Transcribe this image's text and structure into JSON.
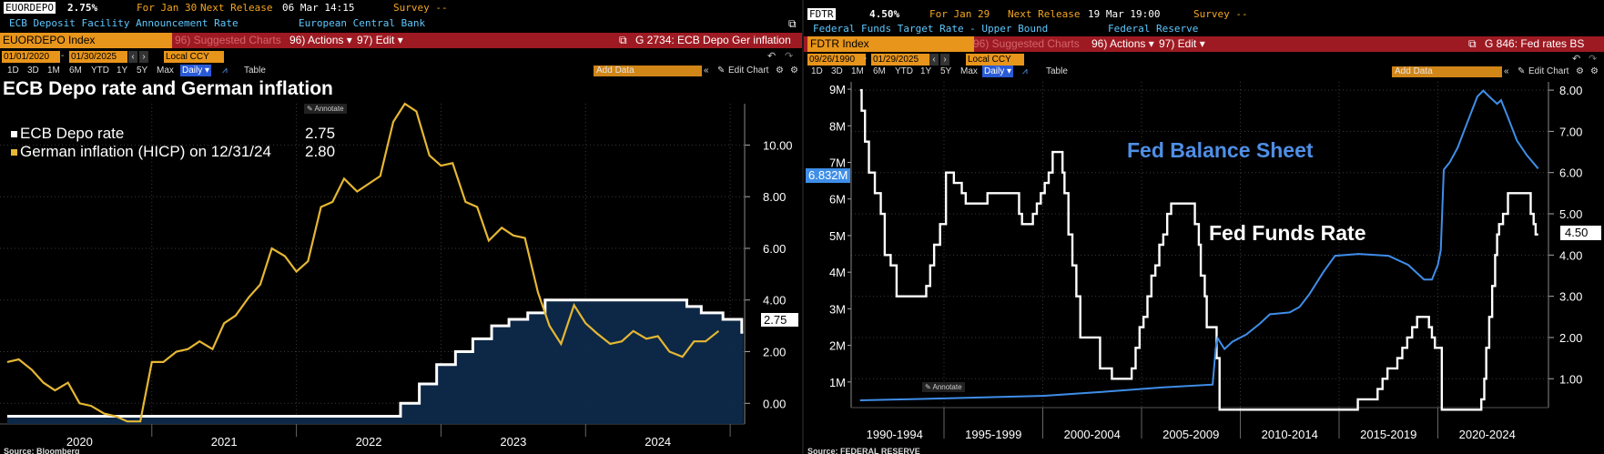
{
  "left": {
    "ticker": "EUORDEPO",
    "value": "2.75%",
    "for_date": "For Jan 30",
    "next_release_label": "Next Release",
    "next_release": "06 Mar 14:15",
    "survey": "Survey --",
    "description": "ECB Deposit Facility Announcement Rate",
    "source_org": "European Central Bank",
    "index_label": "EUORDEPO Index",
    "suggested_charts": "96) Suggested Charts",
    "actions": "96) Actions ▾",
    "edit": "97) Edit ▾",
    "chart_ref": "G 2734: ECB Depo Ger inflation",
    "date_from": "01/01/2020",
    "date_to": "01/30/2025",
    "currency": "Local CCY",
    "periods": [
      "1D",
      "3D",
      "1M",
      "6M",
      "YTD",
      "1Y",
      "5Y",
      "Max"
    ],
    "frequency": "Daily ▾",
    "table_label": "Table",
    "add_data": "Add Data",
    "edit_chart": "Edit Chart",
    "title": "ECB Depo rate and German inflation",
    "annotate": "Annotate",
    "source": "Source: Bloomberg",
    "last_value_tag": "2.75",
    "legend": [
      {
        "name": "ECB Depo rate",
        "value": "2.75",
        "color": "#ffffff"
      },
      {
        "name": "German inflation (HICP) on 12/31/24",
        "value": "2.80",
        "color": "#e5b733"
      }
    ]
  },
  "right": {
    "ticker": "FDTR",
    "value": "4.50%",
    "for_date": "For Jan 29",
    "next_release_label": "Next Release",
    "next_release": "19 Mar 19:00",
    "survey": "Survey --",
    "description": "Federal Funds Target Rate - Upper Bound",
    "source_org": "Federal Reserve",
    "index_label": "FDTR Index",
    "suggested_charts": "96) Suggested Charts",
    "actions": "96) Actions ▾",
    "edit": "97) Edit ▾",
    "chart_ref": "G 846: Fed rates BS",
    "date_from": "09/26/1990",
    "date_to": "01/29/2025",
    "currency": "Local CCY",
    "periods": [
      "1D",
      "3D",
      "1M",
      "6M",
      "YTD",
      "1Y",
      "5Y",
      "Max"
    ],
    "frequency": "Daily ▾",
    "table_label": "Table",
    "add_data": "Add Data",
    "edit_chart": "Edit Chart",
    "annotate": "Annotate",
    "label_balance_sheet": "Fed Balance Sheet",
    "label_funds_rate": "Fed Funds Rate",
    "tag_left": "6.832M",
    "tag_right": "4.50",
    "source": "Source: FEDERAL RESERVE"
  },
  "colors": {
    "accent_orange": "#e8951b",
    "bar_red": "#9e1a22",
    "depo_fill": "#0e2a4a",
    "inflation": "#e5b733",
    "balance": "#3f8ee8"
  },
  "chart_data": [
    {
      "type": "line",
      "title": "ECB Depo rate and German inflation",
      "x_ticks": [
        "2020",
        "2021",
        "2022",
        "2023",
        "2024"
      ],
      "y_ticks": [
        "0.00",
        "2.00",
        "4.00",
        "6.00",
        "8.00",
        "10.00"
      ],
      "ylim": [
        -0.8,
        11.6
      ],
      "grid": true,
      "legend_position": "top-left",
      "series": [
        {
          "name": "ECB Depo rate",
          "style": "step-area",
          "x": [
            2020.0,
            2022.55,
            2022.72,
            2022.85,
            2022.97,
            2023.1,
            2023.22,
            2023.35,
            2023.47,
            2023.6,
            2023.72,
            2024.43,
            2024.7,
            2024.8,
            2024.95,
            2025.08
          ],
          "y": [
            -0.5,
            -0.5,
            0.0,
            0.75,
            1.5,
            2.0,
            2.5,
            3.0,
            3.25,
            3.5,
            4.0,
            4.0,
            3.75,
            3.5,
            3.25,
            2.75
          ]
        },
        {
          "name": "German inflation (HICP) on 12/31/24",
          "style": "line",
          "x": [
            2020.0,
            2020.08,
            2020.17,
            2020.25,
            2020.33,
            2020.42,
            2020.5,
            2020.58,
            2020.67,
            2020.75,
            2020.83,
            2020.92,
            2021.0,
            2021.08,
            2021.17,
            2021.25,
            2021.33,
            2021.42,
            2021.5,
            2021.58,
            2021.67,
            2021.75,
            2021.83,
            2021.92,
            2022.0,
            2022.08,
            2022.17,
            2022.25,
            2022.33,
            2022.42,
            2022.5,
            2022.58,
            2022.67,
            2022.75,
            2022.83,
            2022.92,
            2023.0,
            2023.08,
            2023.17,
            2023.25,
            2023.33,
            2023.42,
            2023.5,
            2023.58,
            2023.67,
            2023.75,
            2023.83,
            2023.92,
            2024.0,
            2024.08,
            2024.17,
            2024.25,
            2024.33,
            2024.42,
            2024.5,
            2024.58,
            2024.67,
            2024.75,
            2024.83,
            2024.92
          ],
          "y": [
            1.6,
            1.7,
            1.3,
            0.8,
            0.5,
            0.8,
            0.0,
            -0.1,
            -0.4,
            -0.5,
            -0.7,
            -0.7,
            1.6,
            1.6,
            2.0,
            2.1,
            2.4,
            2.1,
            3.1,
            3.4,
            4.1,
            4.6,
            6.0,
            5.7,
            5.1,
            5.5,
            7.6,
            7.8,
            8.7,
            8.2,
            8.5,
            8.8,
            10.9,
            11.6,
            11.3,
            9.6,
            9.2,
            9.3,
            7.8,
            7.6,
            6.3,
            6.8,
            6.5,
            6.4,
            4.3,
            3.0,
            2.3,
            3.8,
            3.1,
            2.7,
            2.3,
            2.4,
            2.8,
            2.5,
            2.6,
            2.0,
            1.8,
            2.4,
            2.4,
            2.8
          ]
        }
      ]
    },
    {
      "type": "line",
      "x_ticks": [
        "1990-1994",
        "1995-1999",
        "2000-2004",
        "2005-2009",
        "2010-2014",
        "2015-2019",
        "2020-2024"
      ],
      "y_left_ticks": [
        "1M",
        "2M",
        "3M",
        "4M",
        "5M",
        "6M",
        "7M",
        "8M",
        "9M"
      ],
      "y_right_ticks": [
        "1.00",
        "2.00",
        "3.00",
        "4.00",
        "5.00",
        "6.00",
        "7.00",
        "8.00"
      ],
      "ylim_left": [
        0.3,
        9.2
      ],
      "ylim_right": [
        0.3,
        8.2
      ],
      "grid": true,
      "series": [
        {
          "name": "Fed Funds Rate",
          "axis": "right",
          "style": "step",
          "x": [
            1990.75,
            1990.83,
            1991.0,
            1991.2,
            1991.5,
            1991.8,
            1992.0,
            1992.3,
            1992.6,
            1994.1,
            1994.3,
            1994.5,
            1994.8,
            1995.1,
            1995.5,
            1995.9,
            1996.1,
            1997.2,
            1998.8,
            1998.95,
            1999.5,
            1999.7,
            1999.9,
            2000.1,
            2000.3,
            2000.5,
            2001.0,
            2001.1,
            2001.3,
            2001.5,
            2001.7,
            2001.9,
            2002.9,
            2003.5,
            2004.5,
            2004.7,
            2004.9,
            2005.1,
            2005.3,
            2005.5,
            2005.7,
            2005.9,
            2006.1,
            2006.3,
            2006.5,
            2007.7,
            2007.9,
            2008.0,
            2008.2,
            2008.3,
            2008.8,
            2008.95,
            2015.95,
            2016.95,
            2017.2,
            2017.45,
            2017.95,
            2018.2,
            2018.45,
            2018.7,
            2018.95,
            2019.55,
            2019.7,
            2019.85,
            2020.2,
            2022.2,
            2022.35,
            2022.45,
            2022.6,
            2022.75,
            2022.9,
            2023.0,
            2023.1,
            2023.3,
            2023.55,
            2024.7,
            2024.85,
            2024.95,
            2025.08
          ],
          "y": [
            8.0,
            7.5,
            6.75,
            6.0,
            5.5,
            5.0,
            4.0,
            3.75,
            3.0,
            3.25,
            3.75,
            4.25,
            4.75,
            6.0,
            5.75,
            5.5,
            5.25,
            5.5,
            5.0,
            4.75,
            5.0,
            5.25,
            5.5,
            5.75,
            6.0,
            6.5,
            6.0,
            5.5,
            4.5,
            3.75,
            3.0,
            2.0,
            1.25,
            1.0,
            1.25,
            1.75,
            2.25,
            2.5,
            3.0,
            3.5,
            3.75,
            4.25,
            4.5,
            5.0,
            5.25,
            4.75,
            4.25,
            3.5,
            3.0,
            2.25,
            1.5,
            0.25,
            0.5,
            0.75,
            1.0,
            1.25,
            1.5,
            1.75,
            2.0,
            2.25,
            2.5,
            2.25,
            2.0,
            1.75,
            0.25,
            0.5,
            1.0,
            1.75,
            2.5,
            3.25,
            4.0,
            4.5,
            4.75,
            5.0,
            5.5,
            5.0,
            4.75,
            4.5,
            4.5
          ]
        },
        {
          "name": "Fed Balance Sheet",
          "axis": "left",
          "style": "line",
          "x": [
            1990.75,
            1995.0,
            2000.0,
            2003.0,
            2006.0,
            2008.6,
            2008.75,
            2008.85,
            2009.2,
            2009.6,
            2010.3,
            2011.0,
            2011.5,
            2012.5,
            2013.0,
            2013.5,
            2014.2,
            2014.8,
            2016.0,
            2017.5,
            2018.5,
            2019.3,
            2019.7,
            2020.0,
            2020.15,
            2020.3,
            2020.6,
            2021.0,
            2021.5,
            2022.0,
            2022.3,
            2022.6,
            2023.0,
            2023.2,
            2023.5,
            2024.0,
            2024.5,
            2025.08
          ],
          "y": [
            0.5,
            0.55,
            0.62,
            0.73,
            0.85,
            0.93,
            1.9,
            2.2,
            1.9,
            2.1,
            2.3,
            2.6,
            2.85,
            2.9,
            3.05,
            3.4,
            4.0,
            4.45,
            4.5,
            4.45,
            4.2,
            3.8,
            3.8,
            4.2,
            4.6,
            6.8,
            7.0,
            7.4,
            8.1,
            8.8,
            8.96,
            8.8,
            8.6,
            8.7,
            8.3,
            7.6,
            7.2,
            6.832
          ]
        }
      ]
    }
  ]
}
